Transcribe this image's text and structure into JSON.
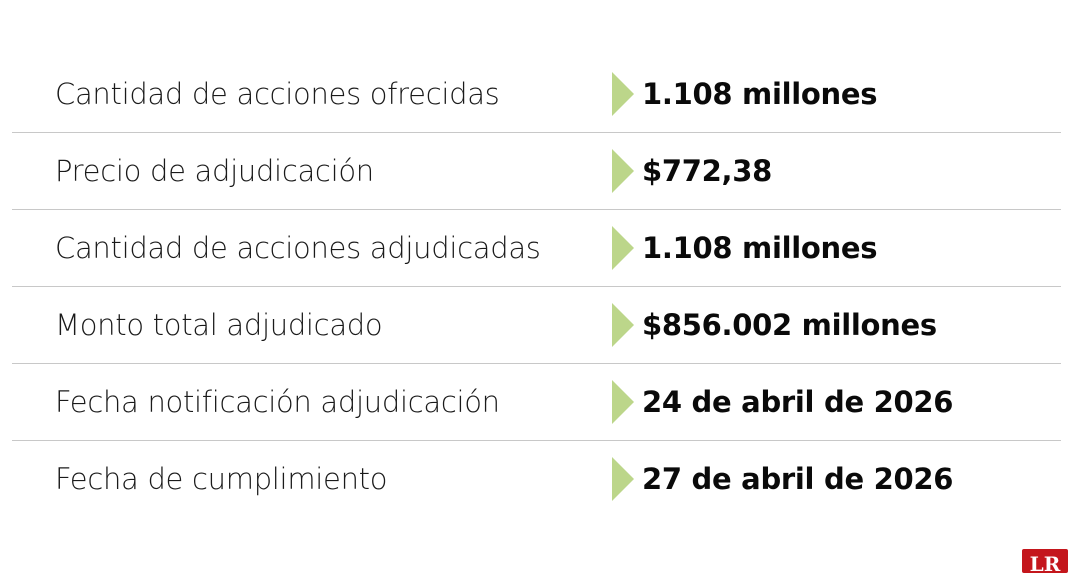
{
  "rows": [
    {
      "label": "Cantidad de acciones ofrecidas",
      "value": "1.108 millones"
    },
    {
      "label": "Precio de adjudicación",
      "value": "$772,38"
    },
    {
      "label": "Cantidad de acciones adjudicadas",
      "value": "1.108 millones"
    },
    {
      "label": "Monto total adjudicado",
      "value": "$856.002 millones"
    },
    {
      "label": "Fecha notificación adjudicación",
      "value": "24 de abril de 2026"
    },
    {
      "label": "Fecha de cumplimiento",
      "value": "27 de abril de 2026"
    }
  ],
  "colors": {
    "arrow": "#bcd68a",
    "logo": "#c4161c",
    "divider": "#c8c8c8"
  },
  "logo": {
    "text": "LR"
  }
}
